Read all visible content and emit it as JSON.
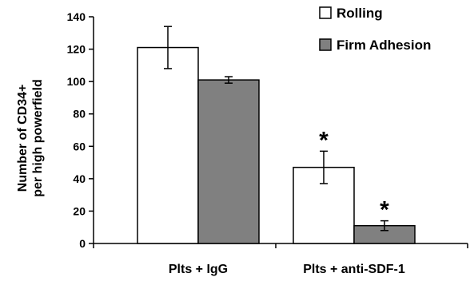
{
  "chart_data": {
    "type": "bar",
    "title": "",
    "xlabel": "",
    "ylabel": [
      "Number of CD34+",
      "per high powerfield"
    ],
    "ylim": [
      0,
      140
    ],
    "yticks": [
      0,
      20,
      40,
      60,
      80,
      100,
      120,
      140
    ],
    "grid": false,
    "legend_position": "top-right",
    "categories": [
      "Plts + IgG",
      "Plts + anti-SDF-1"
    ],
    "series": [
      {
        "name": "Rolling",
        "color": "#ffffff",
        "values": [
          121,
          47
        ],
        "errors": [
          13,
          10
        ],
        "annotations": [
          "",
          "*"
        ]
      },
      {
        "name": "Firm Adhesion",
        "color": "#808080",
        "values": [
          101,
          11
        ],
        "errors": [
          2,
          3
        ],
        "annotations": [
          "",
          "*"
        ]
      }
    ]
  }
}
